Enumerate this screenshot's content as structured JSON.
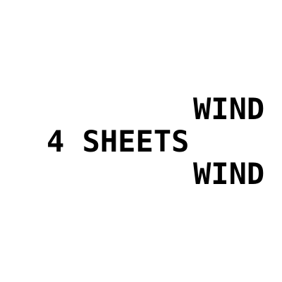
{
  "lines": {
    "top": "WIND",
    "middle": "4 SHEETS",
    "bottom": "WIND"
  },
  "colors": {
    "background": "#ffffff",
    "text": "#000000"
  }
}
